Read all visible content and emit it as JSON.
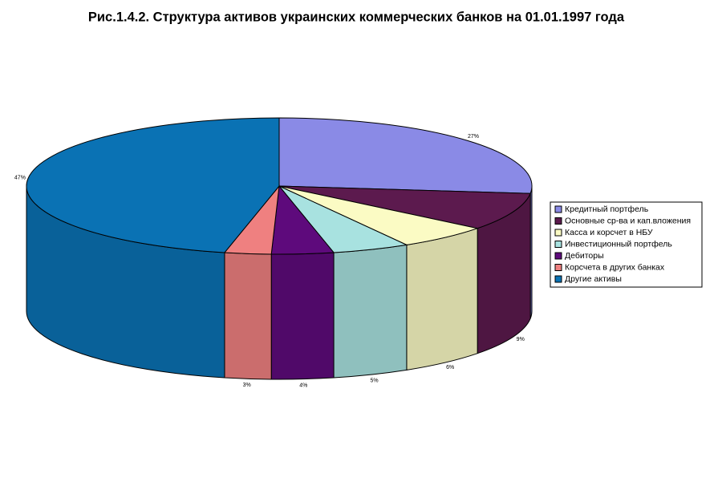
{
  "chart_data": {
    "type": "pie3d",
    "title": "Рис.1.4.2. Структура активов украинских коммерческих банков на 01.01.1997 года",
    "categories": [
      "Кредитный портфель",
      "Основные ср-ва и кап.вложения",
      "Касса и корсчет в НБУ",
      "Инвестиционный портфель",
      "Дебиторы",
      "Корсчета в других банках",
      "Другие активы"
    ],
    "values": [
      27,
      9,
      6,
      5,
      4,
      3,
      47
    ],
    "value_labels": [
      "27%",
      "9%",
      "6%",
      "5%",
      "4%",
      "3%",
      "47%"
    ],
    "colors": [
      "#8a8ae6",
      "#5c1a4e",
      "#fbfbc4",
      "#a8e2e0",
      "#5e0a7c",
      "#ef8080",
      "#0a72b4"
    ],
    "legend": "right"
  }
}
